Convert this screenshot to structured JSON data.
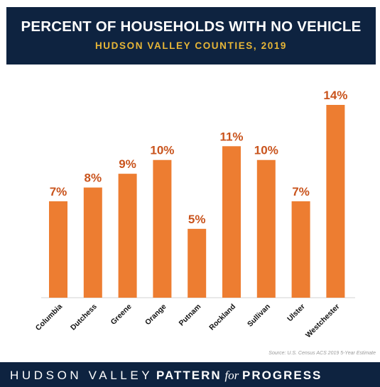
{
  "header": {
    "title": "PERCENT OF HOUSEHOLDS WITH NO VEHICLE",
    "subtitle": "HUDSON VALLEY COUNTIES, 2019"
  },
  "source": "Source: U.S. Census ACS 2019 5-Year Estimate",
  "footer": {
    "part1": "HUDSON VALLEY",
    "part2": "PATTERN",
    "part3": "for",
    "part4": "PROGRESS"
  },
  "colors": {
    "bar": "#ed7d31",
    "label": "#c9541d",
    "header_bg": "#0e2340",
    "subtitle": "#e7b637"
  },
  "chart_data": {
    "type": "bar",
    "title": "PERCENT OF HOUSEHOLDS WITH NO VEHICLE",
    "subtitle": "HUDSON VALLEY COUNTIES, 2019",
    "categories": [
      "Columbia",
      "Dutchess",
      "Greene",
      "Orange",
      "Putnam",
      "Rockland",
      "Sullivan",
      "Ulster",
      "Westchester"
    ],
    "values": [
      7,
      8,
      9,
      10,
      5,
      11,
      10,
      7,
      14
    ],
    "data_labels": [
      "7%",
      "8%",
      "9%",
      "10%",
      "5%",
      "11%",
      "10%",
      "7%",
      "14%"
    ],
    "ylim": [
      0,
      14
    ],
    "grid": false,
    "legend": "none"
  }
}
